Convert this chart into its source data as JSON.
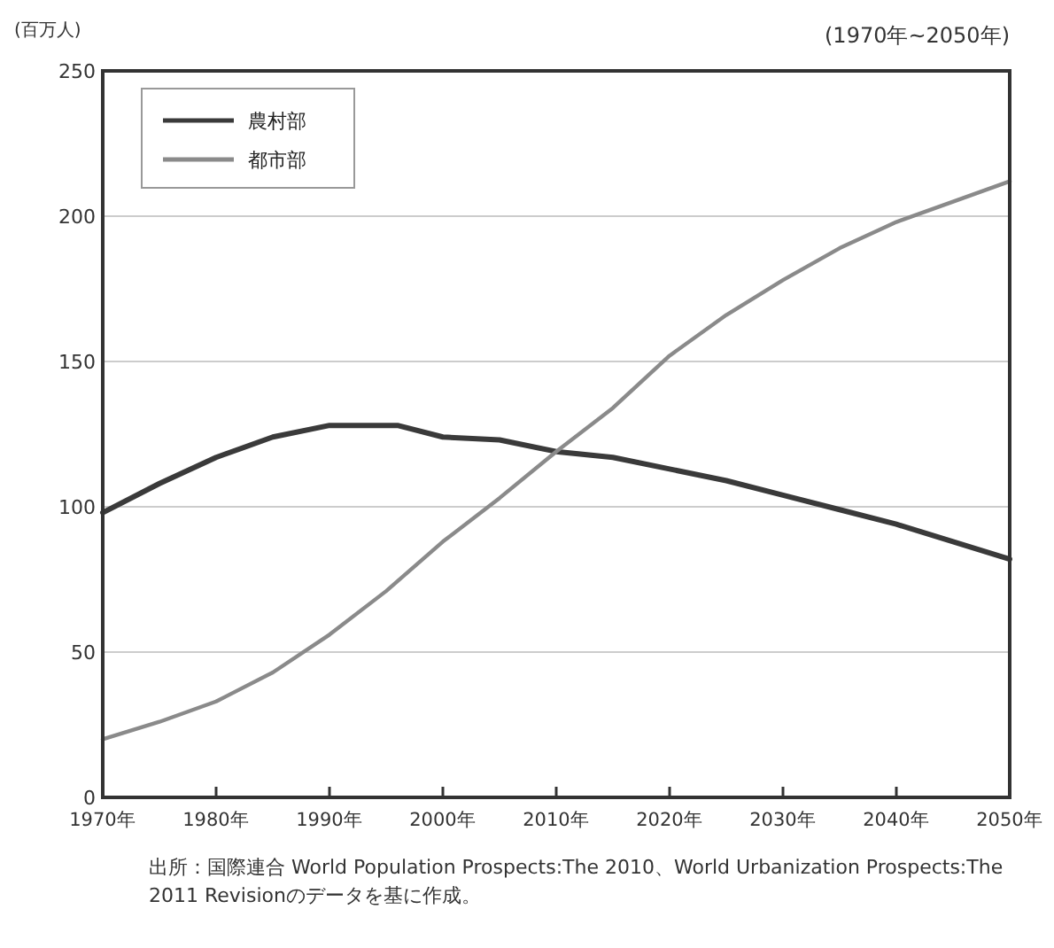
{
  "chart_data": {
    "type": "line",
    "subtitle": "(1970年~2050年)",
    "ylabel": "(百万人)",
    "x": [
      1970,
      1975,
      1980,
      1985,
      1990,
      1995,
      2000,
      2005,
      2010,
      2015,
      2020,
      2025,
      2030,
      2035,
      2040,
      2045,
      2050
    ],
    "series": [
      {
        "name": "農村部",
        "color": "#3a3a3a",
        "x": [
          1970,
          1975,
          1980,
          1985,
          1990,
          1996,
          2000,
          2005,
          2010,
          2015,
          2020,
          2025,
          2030,
          2035,
          2040,
          2045,
          2050
        ],
        "values": [
          98,
          108,
          117,
          124,
          128,
          128,
          124,
          123,
          119,
          117,
          113,
          109,
          104,
          99,
          94,
          88,
          82
        ]
      },
      {
        "name": "都市部",
        "color": "#8a8a8a",
        "values": [
          20,
          26,
          33,
          43,
          56,
          71,
          88,
          103,
          119,
          134,
          152,
          166,
          178,
          189,
          198,
          205,
          212
        ]
      }
    ],
    "xlim": [
      1970,
      2050
    ],
    "ylim": [
      0,
      250
    ],
    "xticks": [
      {
        "value": 1970,
        "label": "1970年"
      },
      {
        "value": 1980,
        "label": "1980年"
      },
      {
        "value": 1990,
        "label": "1990年"
      },
      {
        "value": 2000,
        "label": "2000年"
      },
      {
        "value": 2010,
        "label": "2010年"
      },
      {
        "value": 2020,
        "label": "2020年"
      },
      {
        "value": 2030,
        "label": "2030年"
      },
      {
        "value": 2040,
        "label": "2040年"
      },
      {
        "value": 2050,
        "label": "2050年"
      }
    ],
    "yticks": [
      0,
      50,
      100,
      150,
      200,
      250
    ],
    "grid": "y",
    "legend": "top left",
    "marker": "none",
    "line_style": "solid",
    "annotations": [
      "出所：国際連合 World Population Prospects:The 2010、World Urbanization Prospects:The 2011 Revisionのデータを基に作成。"
    ]
  }
}
